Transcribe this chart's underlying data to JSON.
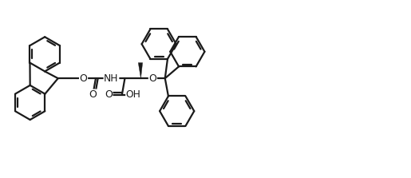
{
  "bg": "#ffffff",
  "lc": "#1a1a1a",
  "lw": 1.6,
  "xlim": [
    0,
    10
  ],
  "ylim": [
    0,
    4.3
  ],
  "figsize": [
    5.15,
    2.23
  ],
  "dpi": 100
}
